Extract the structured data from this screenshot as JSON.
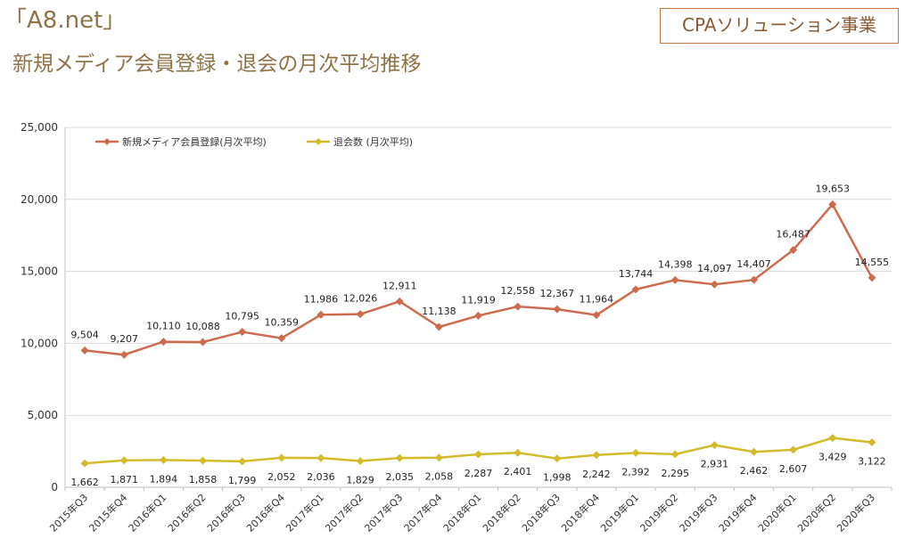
{
  "header": {
    "brand": "「A8.net」",
    "subtitle": "新規メディア会員登録・退会の月次平均推移",
    "tag": "CPAソリューション事業"
  },
  "colors": {
    "text": "#8f7246",
    "tag_border": "#c5773f",
    "series1": "#cd6b4e",
    "series2": "#d3bb2c"
  },
  "chart_data": {
    "type": "line",
    "categories": [
      "2015年Q3",
      "2015年Q4",
      "2016年Q1",
      "2016年Q2",
      "2016年Q3",
      "2016年Q4",
      "2017年Q1",
      "2017年Q2",
      "2017年Q3",
      "2017年Q4",
      "2018年Q1",
      "2018年Q2",
      "2018年Q3",
      "2018年Q4",
      "2019年Q1",
      "2019年Q2",
      "2019年Q3",
      "2019年Q4",
      "2020年Q1",
      "2020年Q2",
      "2020年Q3"
    ],
    "series": [
      {
        "name": "新規メディア会員登録(月次平均)",
        "color": "#cd6b4e",
        "values": [
          9504,
          9207,
          10110,
          10088,
          10795,
          10359,
          11986,
          12026,
          12911,
          11138,
          11919,
          12558,
          12367,
          11964,
          13744,
          14398,
          14097,
          14407,
          16487,
          19653,
          14555
        ],
        "labels": [
          "9,504",
          "9,207",
          "10,110",
          "10,088",
          "10,795",
          "10,359",
          "11,986",
          "12,026",
          "12,911",
          "11,138",
          "11,919",
          "12,558",
          "12,367",
          "11,964",
          "13,744",
          "14,398",
          "14,097",
          "14,407",
          "16,487",
          "19,653",
          "14,555"
        ]
      },
      {
        "name": "退会数 (月次平均)",
        "color": "#d3bb2c",
        "values": [
          1662,
          1871,
          1894,
          1858,
          1799,
          2052,
          2036,
          1829,
          2035,
          2058,
          2287,
          2401,
          1998,
          2242,
          2392,
          2295,
          2931,
          2462,
          2607,
          3429,
          3122
        ],
        "labels": [
          "1,662",
          "1,871",
          "1,894",
          "1,858",
          "1,799",
          "2,052",
          "2,036",
          "1,829",
          "2,035",
          "2,058",
          "2,287",
          "2,401",
          "1,998",
          "2,242",
          "2,392",
          "2,295",
          "2,931",
          "2,462",
          "2,607",
          "3,429",
          "3,122"
        ]
      }
    ],
    "yticks": [
      0,
      5000,
      10000,
      15000,
      20000,
      25000
    ],
    "ytick_labels": [
      "0",
      "5,000",
      "10,000",
      "15,000",
      "20,000",
      "25,000"
    ],
    "ylim": [
      0,
      25000
    ],
    "grid": true,
    "legend": "top-left"
  }
}
